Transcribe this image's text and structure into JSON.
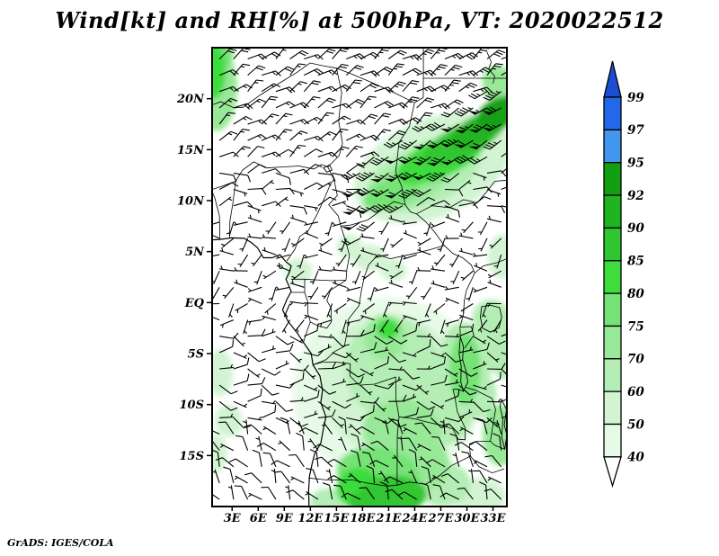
{
  "page": {
    "background": "#ffffff",
    "footer": "GrADS: IGES/COLA"
  },
  "chart_data": {
    "type": "wind_barb_map",
    "title": "Wind[kt] and RH[%] at 500hPa, VT: 2020022512",
    "variables": [
      "Wind [kt]",
      "RH [%]"
    ],
    "level": "500hPa",
    "valid_time": "2020022512",
    "region": {
      "lon_min": 0.7,
      "lon_max": 34.6,
      "lat_min": -20,
      "lat_max": 25
    },
    "x_axis": {
      "ticks": [
        {
          "value": 3,
          "label": "3E"
        },
        {
          "value": 6,
          "label": "6E"
        },
        {
          "value": 9,
          "label": "9E"
        },
        {
          "value": 12,
          "label": "12E"
        },
        {
          "value": 15,
          "label": "15E"
        },
        {
          "value": 18,
          "label": "18E"
        },
        {
          "value": 21,
          "label": "21E"
        },
        {
          "value": 24,
          "label": "24E"
        },
        {
          "value": 27,
          "label": "27E"
        },
        {
          "value": 30,
          "label": "30E"
        },
        {
          "value": 33,
          "label": "33E"
        }
      ]
    },
    "y_axis": {
      "ticks": [
        {
          "value": 20,
          "label": "20N"
        },
        {
          "value": 15,
          "label": "15N"
        },
        {
          "value": 10,
          "label": "10N"
        },
        {
          "value": 5,
          "label": "5N"
        },
        {
          "value": 0,
          "label": "EQ"
        },
        {
          "value": -5,
          "label": "5S"
        },
        {
          "value": -10,
          "label": "10S"
        },
        {
          "value": -15,
          "label": "15S"
        }
      ]
    },
    "colorbar": {
      "units": "%",
      "levels": [
        40,
        50,
        60,
        70,
        75,
        80,
        85,
        90,
        92,
        95,
        97,
        99
      ],
      "segment_colors": [
        "#e7fae7",
        "#d2f4d2",
        "#b4eeb4",
        "#97e897",
        "#75e375",
        "#3edc3c",
        "#30c630",
        "#21b421",
        "#12a012",
        "#4197ee",
        "#2268e8"
      ],
      "above_color": "#1a4ed2",
      "below_color": "#ffffff"
    },
    "barb_key": {
      "pennant_kt": 50,
      "full_barb_kt": 10,
      "half_barb_kt": 5
    },
    "wind_field": {
      "grid_step_deg": {
        "lon": 1.62,
        "lat": 1.6
      },
      "jet": {
        "name": "subtropical-jet-band",
        "lon_min": 17,
        "lat_at_18E": 10,
        "slope": 0.53,
        "half_width_deg": 3.6,
        "dir_from_deg": 237,
        "core_speed_kt": 70,
        "edge_speed_kt": 18
      },
      "regimes": [
        {
          "name": "saharan-northeasterlies",
          "lat_min": 13,
          "lat_max": 25.5,
          "dir_from_deg": 55,
          "speed_kt": 13,
          "lon_speed_grad": 0.45,
          "lat_speed_grad": 0.55,
          "dir_jitter_deg": 18,
          "speed_jitter_kt": 2
        },
        {
          "name": "sahel-easterlies",
          "lat_min": 8,
          "lat_max": 13,
          "dir_from_deg": 80,
          "speed_kt": 8,
          "lon_speed_grad": 0,
          "lat_speed_grad": 0,
          "dir_jitter_deg": 30,
          "speed_jitter_kt": 2
        },
        {
          "name": "equatorial-light-variable",
          "lat_min": -3,
          "lat_max": 8,
          "dir_from_deg": 245,
          "speed_kt": 5,
          "lon_speed_grad": 0,
          "lat_speed_grad": 0,
          "dir_jitter_deg": 48,
          "speed_jitter_kt": 2
        },
        {
          "name": "southern-tropics-easterlies",
          "lat_min": -12,
          "lat_max": -3,
          "dir_from_deg": 100,
          "speed_kt": 8,
          "lon_speed_grad": 0,
          "lat_speed_grad": 0,
          "dir_jitter_deg": 35,
          "speed_jitter_kt": 3
        },
        {
          "name": "subtropical-northwesterlies",
          "lat_min": -20.5,
          "lat_max": -12,
          "dir_from_deg": 325,
          "speed_kt": 9,
          "lon_speed_grad": 0,
          "lat_speed_grad": 0,
          "dir_jitter_deg": 30,
          "speed_jitter_kt": 3
        }
      ]
    },
    "rh_shading": {
      "units": "%",
      "blob_columns": [
        "lon",
        "lat",
        "rx_deg",
        "ry_deg",
        "rot_deg",
        "rh_pct"
      ],
      "blobs": [
        [
          1.2,
          21.0,
          2.4,
          4.2,
          0,
          70
        ],
        [
          0.9,
          22.6,
          1.4,
          2.6,
          0,
          80
        ],
        [
          1.1,
          24.2,
          2.0,
          1.4,
          0,
          75
        ],
        [
          26,
          13.2,
          9.5,
          4.8,
          -23,
          50
        ],
        [
          25,
          12.5,
          7.0,
          3.0,
          -23,
          60
        ],
        [
          23,
          11.5,
          5.0,
          2.0,
          -22,
          70
        ],
        [
          27,
          14.2,
          5.5,
          1.9,
          -24,
          80
        ],
        [
          29.5,
          15.8,
          4.8,
          1.6,
          -25,
          85
        ],
        [
          31.5,
          17.0,
          3.6,
          1.4,
          -26,
          90
        ],
        [
          33.6,
          18.6,
          2.6,
          1.4,
          -28,
          92
        ],
        [
          28.3,
          15.3,
          3.8,
          1.0,
          -25,
          88
        ],
        [
          21.3,
          10.7,
          3.4,
          1.3,
          -20,
          75
        ],
        [
          34.0,
          21.0,
          2.0,
          2.4,
          -30,
          70
        ],
        [
          18.8,
          4.4,
          2.0,
          1.3,
          0,
          55
        ],
        [
          21.5,
          3.2,
          1.6,
          1.1,
          10,
          50
        ],
        [
          16.5,
          5.5,
          1.5,
          1.2,
          0,
          50
        ],
        [
          34.0,
          4.5,
          1.6,
          2.2,
          0,
          55
        ],
        [
          21,
          -8.5,
          11,
          9.0,
          0,
          45
        ],
        [
          21,
          -8,
          8.0,
          7.0,
          0,
          55
        ],
        [
          21.5,
          -6.5,
          5.5,
          5.0,
          -10,
          62
        ],
        [
          20.6,
          -3.4,
          2.4,
          2.2,
          0,
          72
        ],
        [
          20.9,
          -2.6,
          1.3,
          1.0,
          0,
          80
        ],
        [
          24.8,
          -7.5,
          3.2,
          3.0,
          0,
          62
        ],
        [
          29.5,
          -5.5,
          2.6,
          3.6,
          0,
          60
        ],
        [
          29.8,
          -6.5,
          1.8,
          3.5,
          0,
          75
        ],
        [
          31.5,
          -5,
          2.0,
          2.5,
          0,
          68
        ],
        [
          32.8,
          -1.5,
          2.2,
          1.8,
          0,
          65
        ],
        [
          34.2,
          -4.5,
          1.6,
          3.0,
          0,
          62
        ],
        [
          26.5,
          -11,
          4.2,
          3.2,
          0,
          68
        ],
        [
          22.5,
          -12.5,
          4.5,
          3.0,
          0,
          70
        ],
        [
          31.0,
          -9.0,
          2.4,
          2.4,
          0,
          60
        ],
        [
          33.8,
          -13,
          2.0,
          3.0,
          0,
          72
        ],
        [
          19.8,
          -16.8,
          4.8,
          2.6,
          8,
          78
        ],
        [
          21.6,
          -18.8,
          3.8,
          1.8,
          0,
          85
        ],
        [
          17.6,
          -18.2,
          2.6,
          2.0,
          0,
          82
        ],
        [
          20.5,
          -19.6,
          4.0,
          1.5,
          0,
          88
        ],
        [
          24.8,
          -15.8,
          3.2,
          2.6,
          0,
          72
        ],
        [
          27.2,
          -17.8,
          3.2,
          2.2,
          0,
          62
        ],
        [
          31.5,
          -19,
          3.0,
          1.8,
          0,
          55
        ],
        [
          1.6,
          -6.9,
          1.5,
          2.3,
          0,
          55
        ],
        [
          2.6,
          -11.6,
          1.6,
          1.6,
          0,
          50
        ],
        [
          1.1,
          -14.8,
          1.3,
          1.9,
          0,
          50
        ],
        [
          10.6,
          3.1,
          1.6,
          1.2,
          0,
          50
        ],
        [
          14.0,
          -19.5,
          2.0,
          1.3,
          0,
          60
        ]
      ]
    }
  }
}
